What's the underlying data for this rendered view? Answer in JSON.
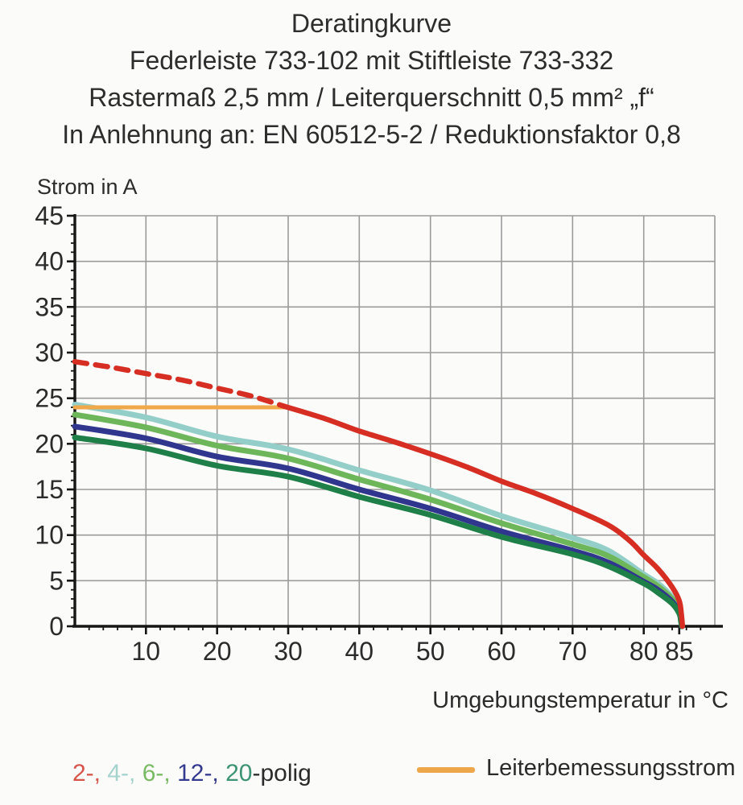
{
  "title": {
    "line1": "Deratingkurve",
    "line2": "Federleiste 733-102 mit Stiftleiste 733-332",
    "line3": "Rastermaß 2,5 mm / Leiterquerschnitt 0,5 mm² „f“",
    "line4": "In Anlehnung an: EN 60512-5-2 / Reduktionsfaktor 0,8"
  },
  "chart_data": {
    "type": "line",
    "x_label": "Umgebungstemperatur in °C",
    "y_label": "Strom in A",
    "x_range": [
      0,
      90
    ],
    "y_range": [
      0,
      45
    ],
    "x_major_ticks": [
      10,
      20,
      30,
      40,
      50,
      60,
      70,
      80,
      85
    ],
    "x_gridlines": [
      10,
      20,
      30,
      40,
      50,
      60,
      70,
      80,
      90
    ],
    "y_major_ticks": [
      0,
      5,
      10,
      15,
      20,
      25,
      30,
      35,
      40,
      45
    ],
    "y_gridlines": [
      5,
      10,
      15,
      20,
      25,
      30,
      35,
      40,
      45
    ],
    "x_minor_step": 2,
    "y_minor_step": 1,
    "grid_on": true,
    "grid_color": "#9b9b9b",
    "axis_color": "#161616",
    "tick_label_color": "#2b2b2b",
    "series": [
      {
        "name": "4-polig",
        "color": "#93cfc8",
        "width": 7,
        "segments": [
          {
            "dash": false,
            "points": [
              [
                0,
                24.3
              ],
              [
                10,
                22.9
              ],
              [
                20,
                20.8
              ],
              [
                30,
                19.4
              ],
              [
                40,
                17.1
              ],
              [
                50,
                14.9
              ],
              [
                60,
                12.1
              ],
              [
                70,
                9.7
              ],
              [
                75,
                8.3
              ],
              [
                80,
                5.7
              ],
              [
                82,
                4.7
              ],
              [
                84,
                3.2
              ],
              [
                85,
                1.9
              ],
              [
                85.3,
                0.8
              ],
              [
                85.4,
                0
              ]
            ]
          }
        ]
      },
      {
        "name": "6-polig",
        "color": "#6db65a",
        "width": 7,
        "segments": [
          {
            "dash": false,
            "points": [
              [
                0,
                23.2
              ],
              [
                10,
                21.8
              ],
              [
                20,
                19.8
              ],
              [
                30,
                18.4
              ],
              [
                40,
                16.1
              ],
              [
                50,
                13.9
              ],
              [
                60,
                11.3
              ],
              [
                70,
                9.0
              ],
              [
                75,
                7.7
              ],
              [
                80,
                5.4
              ],
              [
                82,
                4.4
              ],
              [
                84,
                3.0
              ],
              [
                85,
                1.7
              ],
              [
                85.3,
                0.7
              ],
              [
                85.4,
                0
              ]
            ]
          }
        ]
      },
      {
        "name": "12-polig",
        "color": "#30368d",
        "width": 7,
        "segments": [
          {
            "dash": false,
            "points": [
              [
                0,
                21.9
              ],
              [
                10,
                20.6
              ],
              [
                20,
                18.6
              ],
              [
                30,
                17.3
              ],
              [
                40,
                15.0
              ],
              [
                50,
                12.9
              ],
              [
                60,
                10.4
              ],
              [
                70,
                8.3
              ],
              [
                75,
                7.0
              ],
              [
                80,
                4.9
              ],
              [
                82,
                4.0
              ],
              [
                84,
                2.7
              ],
              [
                85,
                1.5
              ],
              [
                85.25,
                0.6
              ],
              [
                85.35,
                0
              ]
            ]
          }
        ]
      },
      {
        "name": "20-polig",
        "color": "#1f7f48",
        "width": 7,
        "segments": [
          {
            "dash": false,
            "points": [
              [
                0,
                20.7
              ],
              [
                10,
                19.5
              ],
              [
                20,
                17.6
              ],
              [
                30,
                16.4
              ],
              [
                40,
                14.2
              ],
              [
                50,
                12.2
              ],
              [
                60,
                9.8
              ],
              [
                70,
                7.9
              ],
              [
                75,
                6.6
              ],
              [
                80,
                4.7
              ],
              [
                82,
                3.7
              ],
              [
                84,
                2.5
              ],
              [
                85,
                1.4
              ],
              [
                85.25,
                0.5
              ],
              [
                85.35,
                0
              ]
            ]
          }
        ]
      },
      {
        "name": "Leiterbemessungsstrom",
        "color": "#f0a94a",
        "width": 5,
        "segments": [
          {
            "dash": false,
            "points": [
              [
                0,
                24
              ],
              [
                29.5,
                24
              ]
            ]
          }
        ]
      },
      {
        "name": "2-polig",
        "color": "#d62e23",
        "width": 6.5,
        "segments": [
          {
            "dash": true,
            "points": [
              [
                0,
                29
              ],
              [
                5,
                28.4
              ],
              [
                10,
                27.7
              ],
              [
                15,
                27.0
              ],
              [
                20,
                26.1
              ],
              [
                25,
                25.2
              ],
              [
                29.5,
                24.1
              ]
            ]
          },
          {
            "dash": false,
            "points": [
              [
                29.5,
                24.1
              ],
              [
                35,
                22.8
              ],
              [
                40,
                21.4
              ],
              [
                45,
                20.2
              ],
              [
                50,
                18.9
              ],
              [
                55,
                17.5
              ],
              [
                60,
                15.9
              ],
              [
                65,
                14.5
              ],
              [
                70,
                12.9
              ],
              [
                75,
                11.1
              ],
              [
                78,
                9.4
              ],
              [
                80,
                7.8
              ],
              [
                82,
                6.3
              ],
              [
                84,
                4.3
              ],
              [
                85,
                2.8
              ],
              [
                85.3,
                1.3
              ],
              [
                85.45,
                0
              ]
            ]
          }
        ]
      }
    ]
  },
  "legend": {
    "pins": {
      "segments": [
        {
          "text": "2-,",
          "color": "#d6554a"
        },
        {
          "text": " 4-,",
          "color": "#a5d3cd"
        },
        {
          "text": " 6-,",
          "color": "#79bb64"
        },
        {
          "text": " 12-,",
          "color": "#343a8e"
        },
        {
          "text": " 20",
          "color": "#3c9376"
        }
      ],
      "suffix": {
        "text": "-polig",
        "color": "#2b2b2b"
      }
    },
    "reference": {
      "label": "Leiterbemessungsstrom",
      "swatch_color": "#eda64a"
    }
  }
}
